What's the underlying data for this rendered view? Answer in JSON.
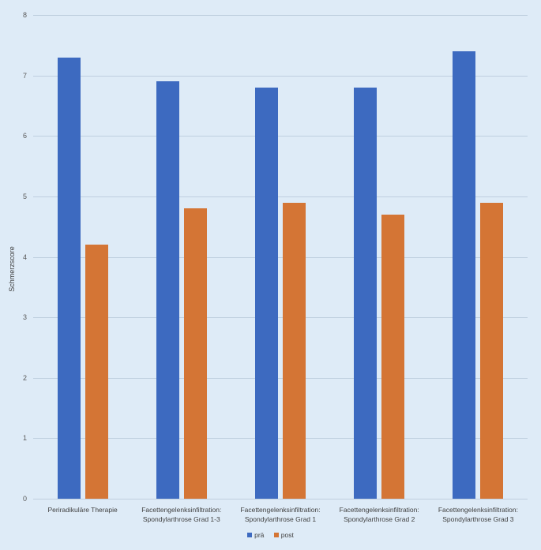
{
  "chart_data": {
    "type": "bar",
    "title": "",
    "xlabel": "",
    "ylabel": "Schmerzscore",
    "ylim": [
      0,
      8
    ],
    "yticks": [
      "0",
      "1",
      "2",
      "3",
      "4",
      "5",
      "6",
      "7",
      "8"
    ],
    "grid": true,
    "legend_position": "bottom",
    "categories": [
      [
        "Periradikuläre Therapie",
        ""
      ],
      [
        "Facettengelenksinfiltration:",
        "Spondylarthrose Grad 1-3"
      ],
      [
        "Facettengelenksinfiltration:",
        "Spondylarthrose Grad 1"
      ],
      [
        "Facettengelenksinfiltration:",
        "Spondylarthrose Grad 2"
      ],
      [
        "Facettengelenksinfiltration:",
        "Spondylarthrose Grad 3"
      ]
    ],
    "series": [
      {
        "name": "prä",
        "color": "#4472c4",
        "values": [
          7.3,
          6.9,
          6.8,
          6.8,
          7.4
        ]
      },
      {
        "name": "post",
        "color": "#ed7d31",
        "values": [
          4.2,
          4.8,
          4.9,
          4.7,
          4.9
        ]
      }
    ]
  },
  "colors": {
    "background": "#deebf7",
    "pre": "#3d6ac0",
    "post": "#d47535"
  }
}
